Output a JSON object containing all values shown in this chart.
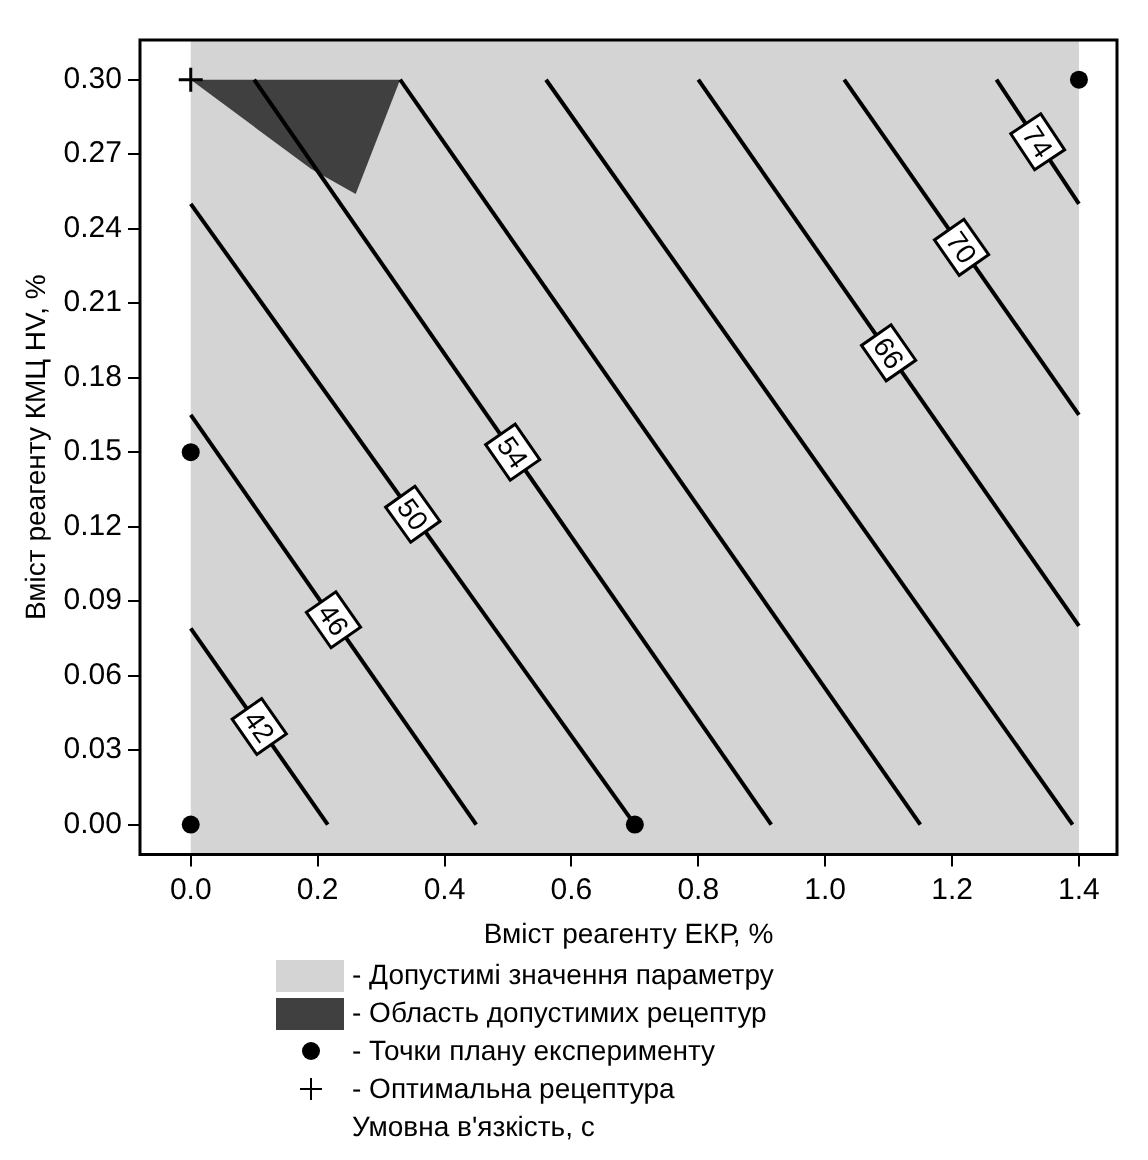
{
  "chart_data": {
    "type": "line",
    "xlabel": "Вміст реагенту ЕКР, %",
    "ylabel": "Вміст реагенту КМЦ HV, %",
    "legend_title": "Умовна в'язкість, с",
    "legend": "bottom",
    "grid": false,
    "marker": "none",
    "line_style": "solid",
    "xlim": [
      -0.08,
      1.46
    ],
    "ylim": [
      -0.012,
      0.316
    ],
    "xticks": [
      {
        "value": 0,
        "label": "0.0"
      },
      {
        "value": 0.2,
        "label": "0.2"
      },
      {
        "value": 0.4,
        "label": "0.4"
      },
      {
        "value": 0.6,
        "label": "0.6"
      },
      {
        "value": 0.8,
        "label": "0.8"
      },
      {
        "value": 1,
        "label": "1.0"
      },
      {
        "value": 1.2,
        "label": "1.2"
      },
      {
        "value": 1.4,
        "label": "1.4"
      }
    ],
    "yticks": [
      {
        "value": 0,
        "label": "0.00"
      },
      {
        "value": 0.03,
        "label": "0.03"
      },
      {
        "value": 0.06,
        "label": "0.06"
      },
      {
        "value": 0.09,
        "label": "0.09"
      },
      {
        "value": 0.12,
        "label": "0.12"
      },
      {
        "value": 0.15,
        "label": "0.15"
      },
      {
        "value": 0.18,
        "label": "0.18"
      },
      {
        "value": 0.21,
        "label": "0.21"
      },
      {
        "value": 0.24,
        "label": "0.24"
      },
      {
        "value": 0.27,
        "label": "0.27"
      },
      {
        "value": 0.3,
        "label": "0.30"
      }
    ],
    "bands": [
      {
        "axis": "x",
        "from": 0,
        "to": 1.4,
        "label": "- Допустимі значення параметру",
        "color": "#d4d4d4"
      }
    ],
    "series": [
      {
        "type": "area",
        "name": "- Область допустимих рецептур",
        "color": "#404040",
        "x": [
          0,
          0.33,
          0.26,
          0.19,
          0
        ],
        "values": [
          0.3,
          0.3,
          0.254,
          0.264,
          0.3
        ]
      },
      {
        "name": "42",
        "color": "#000000",
        "x": [
          0,
          0.216
        ],
        "values": [
          0.079,
          0
        ]
      },
      {
        "name": "46",
        "color": "#000000",
        "x": [
          0,
          0.45
        ],
        "values": [
          0.165,
          0
        ]
      },
      {
        "name": "50",
        "color": "#000000",
        "x": [
          0,
          0.7
        ],
        "values": [
          0.25,
          0
        ]
      },
      {
        "name": "54",
        "color": "#000000",
        "x": [
          0.1,
          0.915
        ],
        "values": [
          0.3,
          0
        ]
      },
      {
        "color": "#000000",
        "x": [
          0.33,
          1.15
        ],
        "values": [
          0.3,
          0
        ]
      },
      {
        "color": "#000000",
        "x": [
          0.56,
          1.39
        ],
        "values": [
          0.3,
          0
        ]
      },
      {
        "name": "66",
        "color": "#000000",
        "x": [
          0.8,
          1.4
        ],
        "values": [
          0.3,
          0.08
        ]
      },
      {
        "name": "70",
        "color": "#000000",
        "x": [
          1.03,
          1.4
        ],
        "values": [
          0.3,
          0.165
        ]
      },
      {
        "name": "74",
        "color": "#000000",
        "x": [
          1.27,
          1.4
        ],
        "values": [
          0.3,
          0.25
        ]
      },
      {
        "type": "scatter",
        "name": "- Точки плану експерименту",
        "color": "#000000",
        "marker": "circle",
        "x": [
          0,
          0,
          0.7,
          1.4
        ],
        "values": [
          0,
          0.15,
          0,
          0.3
        ]
      },
      {
        "type": "scatter",
        "name": "- Оптимальна рецептура",
        "color": "#000000",
        "marker": "cross",
        "x": [
          0
        ],
        "values": [
          0.3
        ]
      }
    ]
  }
}
